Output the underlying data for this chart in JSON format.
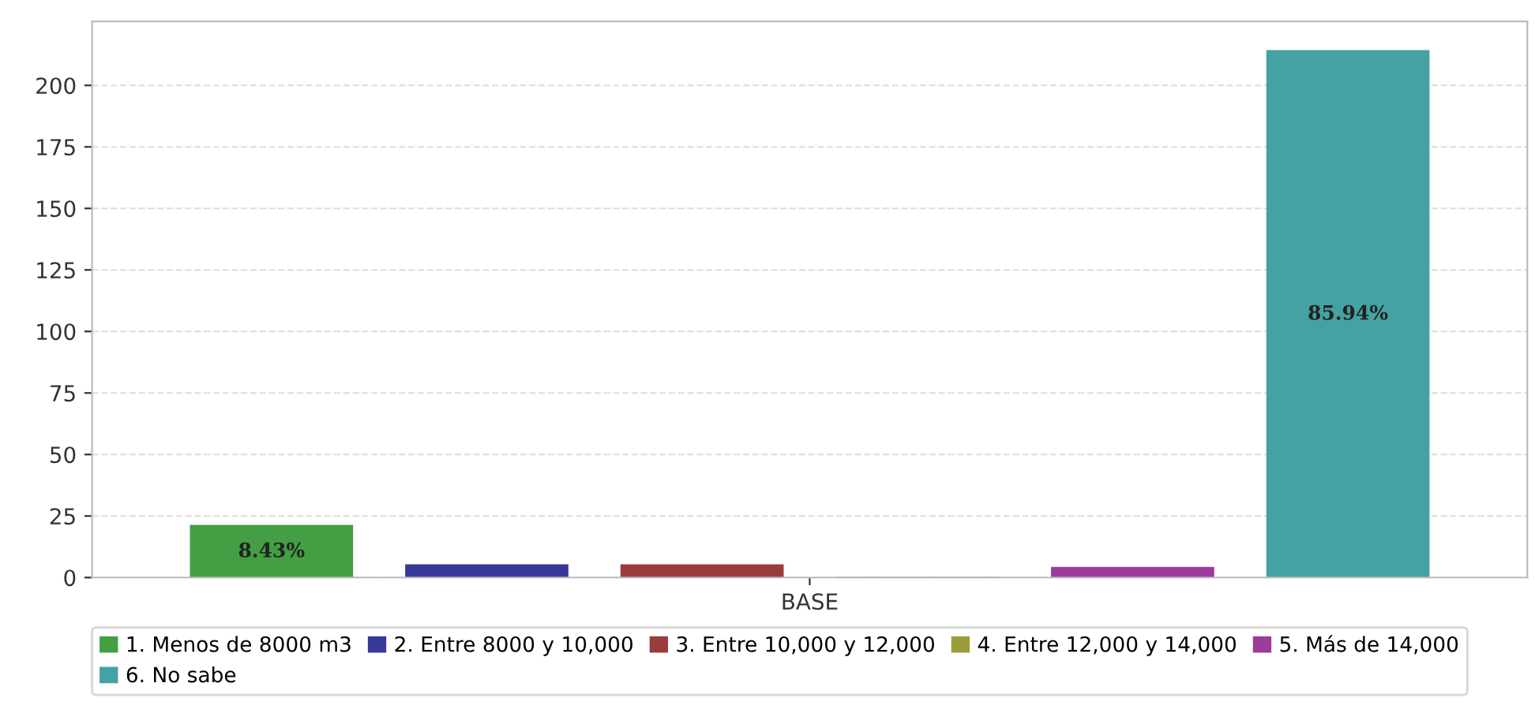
{
  "chart_data": {
    "type": "bar",
    "categories": [
      "BASE"
    ],
    "ylim": [
      0,
      226
    ],
    "yticks": [
      0,
      25,
      50,
      75,
      100,
      125,
      150,
      175,
      200
    ],
    "grid": "y",
    "legend": "bottom",
    "series": [
      {
        "name": "1. Menos de 8000 m3",
        "color": "#3a9a3a",
        "values": [
          21
        ]
      },
      {
        "name": "2. Entre 8000 y 10,000",
        "color": "#2e2e96",
        "values": [
          5
        ]
      },
      {
        "name": "3. Entre 10,000 y 12,000",
        "color": "#963232",
        "values": [
          5
        ]
      },
      {
        "name": "4. Entre 12,000 y 14,000",
        "color": "#969632",
        "values": [
          0
        ]
      },
      {
        "name": "5. Más de 14,000",
        "color": "#963296",
        "values": [
          4
        ]
      },
      {
        "name": "6. No sabe",
        "color": "#3a9e9e",
        "values": [
          214
        ]
      }
    ],
    "annotations": [
      "8.43%",
      "85.94%"
    ]
  }
}
